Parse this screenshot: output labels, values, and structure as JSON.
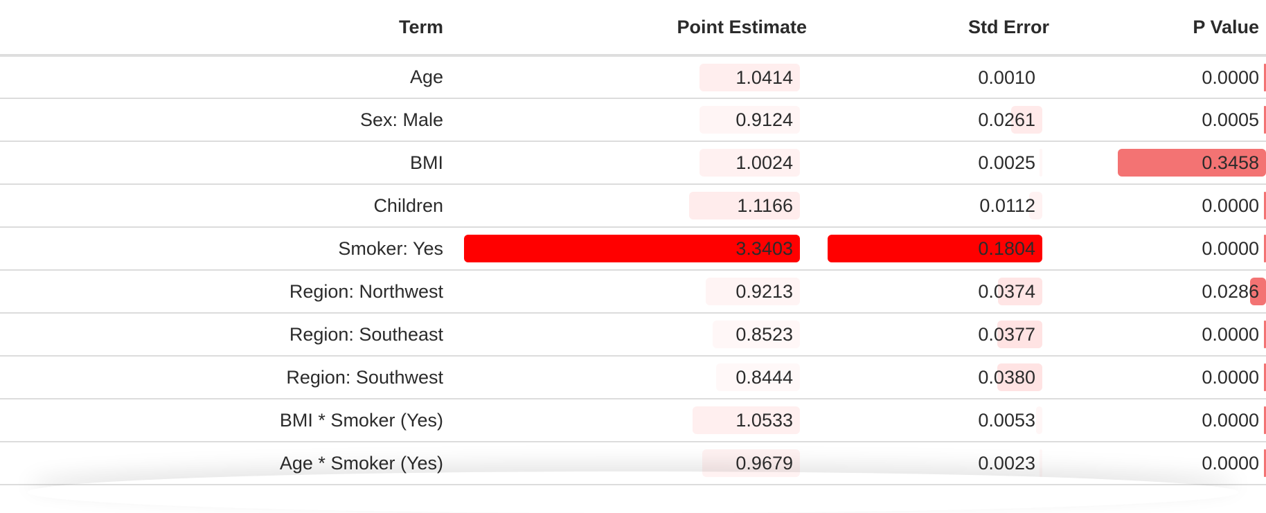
{
  "colors": {
    "header_text": "#2b2b2b",
    "cell_text": "#2b2b2b",
    "bar_hue": "#ff0000",
    "row_divider": "#dcdcdc"
  },
  "table": {
    "columns": {
      "term": "Term",
      "estimate": "Point Estimate",
      "std_error": "Std Error",
      "p_value": "P Value"
    },
    "rows": [
      {
        "term": "Age",
        "estimate": "1.0414",
        "std_error": "0.0010",
        "p_value": "0.0000",
        "est_bar": 0.3,
        "est_tint": 0.12,
        "se_bar": 0,
        "se_tint": 0,
        "p_bar": 0.01,
        "p_tint": 0.55
      },
      {
        "term": "Sex: Male",
        "estimate": "0.9124",
        "std_error": "0.0261",
        "p_value": "0.0005",
        "est_bar": 0.3,
        "est_tint": 0.04,
        "se_bar": 0.145,
        "se_tint": 0.18,
        "p_bar": 0.01,
        "p_tint": 0.55
      },
      {
        "term": "BMI",
        "estimate": "1.0024",
        "std_error": "0.0025",
        "p_value": "0.3458",
        "est_bar": 0.3,
        "est_tint": 0.09,
        "se_bar": 0.014,
        "se_tint": 0.02,
        "p_bar": 0.755,
        "p_tint": 0.55
      },
      {
        "term": "Children",
        "estimate": "1.1166",
        "std_error": "0.0112",
        "p_value": "0.0000",
        "est_bar": 0.33,
        "est_tint": 0.15,
        "se_bar": 0.062,
        "se_tint": 0.08,
        "p_bar": 0.01,
        "p_tint": 0.55
      },
      {
        "term": "Smoker: Yes",
        "estimate": "3.3403",
        "std_error": "0.1804",
        "p_value": "0.0000",
        "est_bar": 1.0,
        "est_tint": 1.0,
        "se_bar": 1.0,
        "se_tint": 1.0,
        "p_bar": 0.01,
        "p_tint": 0.55
      },
      {
        "term": "Region: Northwest",
        "estimate": "0.9213",
        "std_error": "0.0374",
        "p_value": "0.0286",
        "est_bar": 0.28,
        "est_tint": 0.05,
        "se_bar": 0.207,
        "se_tint": 0.24,
        "p_bar": 0.083,
        "p_tint": 0.55
      },
      {
        "term": "Region: Southeast",
        "estimate": "0.8523",
        "std_error": "0.0377",
        "p_value": "0.0000",
        "est_bar": 0.26,
        "est_tint": 0.01,
        "se_bar": 0.209,
        "se_tint": 0.26,
        "p_bar": 0.01,
        "p_tint": 0.55
      },
      {
        "term": "Region: Southwest",
        "estimate": "0.8444",
        "std_error": "0.0380",
        "p_value": "0.0000",
        "est_bar": 0.25,
        "est_tint": 0.0,
        "se_bar": 0.211,
        "se_tint": 0.27,
        "p_bar": 0.01,
        "p_tint": 0.55
      },
      {
        "term": "BMI * Smoker (Yes)",
        "estimate": "1.0533",
        "std_error": "0.0053",
        "p_value": "0.0000",
        "est_bar": 0.32,
        "est_tint": 0.11,
        "se_bar": 0.029,
        "se_tint": 0.03,
        "p_bar": 0.01,
        "p_tint": 0.55
      },
      {
        "term": "Age * Smoker (Yes)",
        "estimate": "0.9679",
        "std_error": "0.0023",
        "p_value": "0.0000",
        "est_bar": 0.29,
        "est_tint": 0.07,
        "se_bar": 0.013,
        "se_tint": 0.01,
        "p_bar": 0.01,
        "p_tint": 0.55
      }
    ]
  }
}
